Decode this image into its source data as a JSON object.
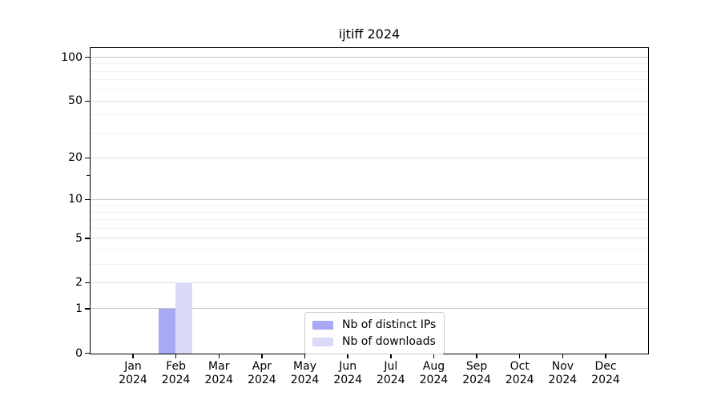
{
  "figure": {
    "background": "#ffffff"
  },
  "chart_data": {
    "type": "bar",
    "title": "ijtiff 2024",
    "x_labels": [
      [
        "Jan",
        "2024"
      ],
      [
        "Feb",
        "2024"
      ],
      [
        "Mar",
        "2024"
      ],
      [
        "Apr",
        "2024"
      ],
      [
        "May",
        "2024"
      ],
      [
        "Jun",
        "2024"
      ],
      [
        "Jul",
        "2024"
      ],
      [
        "Aug",
        "2024"
      ],
      [
        "Sep",
        "2024"
      ],
      [
        "Oct",
        "2024"
      ],
      [
        "Nov",
        "2024"
      ],
      [
        "Dec",
        "2024"
      ]
    ],
    "series": [
      {
        "name": "Nb of distinct IPs",
        "color": "#a8a9f4",
        "values": [
          0,
          1,
          0,
          0,
          0,
          0,
          0,
          0,
          0,
          0,
          0,
          0
        ]
      },
      {
        "name": "Nb of downloads",
        "color": "#d9daf8",
        "values": [
          0,
          2,
          0,
          0,
          0,
          0,
          0,
          0,
          0,
          0,
          0,
          0
        ]
      }
    ],
    "y_axis": {
      "scale": "log1p",
      "ticks": [
        0,
        1,
        2,
        5,
        10,
        20,
        50,
        100
      ],
      "emphasized_ticks": [
        1,
        10,
        100
      ],
      "minor_gridlines": [
        3,
        4,
        6,
        7,
        8,
        9,
        30,
        40,
        60,
        70,
        80,
        90
      ],
      "minor_ticks_unlabeled": [
        15
      ],
      "ylim": [
        0,
        115
      ]
    },
    "legend": {
      "position": "bottom-center"
    },
    "grid": true,
    "colors": {
      "grid_major": "#c6c6c6",
      "grid_mid": "#e2e2e2",
      "grid_minor": "#f1f1f1",
      "spine": "#000000",
      "text": "#000000"
    }
  }
}
